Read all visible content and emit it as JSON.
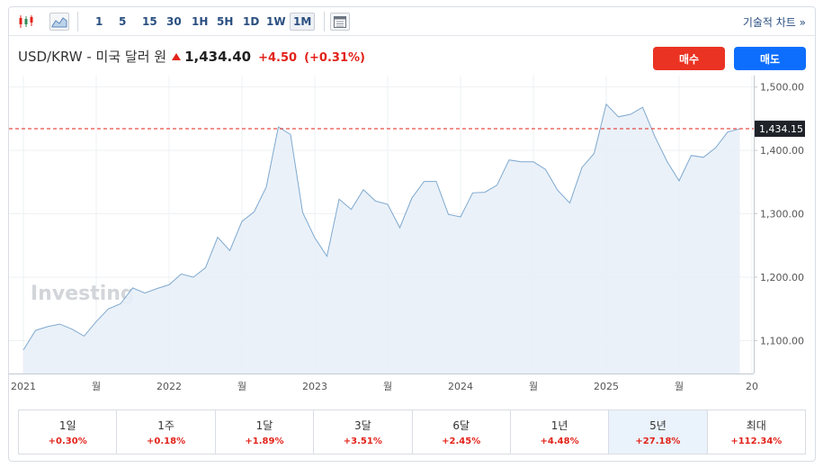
{
  "toolbar": {
    "timeframes": [
      {
        "label": "1",
        "active": false
      },
      {
        "label": "5",
        "active": false
      },
      {
        "label": "15",
        "active": false
      },
      {
        "label": "30",
        "active": false
      },
      {
        "label": "1H",
        "active": false
      },
      {
        "label": "5H",
        "active": false
      },
      {
        "label": "1D",
        "active": false
      },
      {
        "label": "1W",
        "active": false
      },
      {
        "label": "1M",
        "active": true
      }
    ],
    "technical_chart_link": "기술적 차트 »",
    "icons": [
      "candlestick-icon",
      "area-chart-icon",
      "calendar-icon"
    ]
  },
  "header": {
    "pair": "USD/KRW - 미국 달러 원",
    "price": "1,434.40",
    "change": "+4.50",
    "change_pct": "(+0.31%)",
    "direction": "up"
  },
  "buttons": {
    "buy": "매수",
    "sell": "매도"
  },
  "colors": {
    "up": "#e2231a",
    "buy": "#ea3323",
    "sell": "#0d6efd",
    "line": "#7fa9cf",
    "fill": "#e8f0f8"
  },
  "watermark": "Investing",
  "chart_data": {
    "type": "area",
    "frequency": "monthly",
    "start": "2021-01",
    "values": [
      1085,
      1116,
      1122,
      1126,
      1118,
      1107,
      1130,
      1150,
      1158,
      1183,
      1175,
      1182,
      1188,
      1205,
      1200,
      1215,
      1263,
      1242,
      1288,
      1303,
      1342,
      1437,
      1425,
      1302,
      1262,
      1233,
      1323,
      1307,
      1338,
      1320,
      1315,
      1278,
      1325,
      1351,
      1351,
      1299,
      1295,
      1333,
      1334,
      1345,
      1385,
      1382,
      1382,
      1370,
      1337,
      1317,
      1373,
      1395,
      1473,
      1453,
      1457,
      1468,
      1422,
      1383,
      1352,
      1392,
      1389,
      1404,
      1429,
      1434
    ],
    "last_price_label": "1,434.15",
    "last_price": 1434.15,
    "y_ticks": [
      "1,100.00",
      "1,200.00",
      "1,300.00",
      "1,400.00",
      "1,500.00"
    ],
    "y_tick_values": [
      1100,
      1200,
      1300,
      1400,
      1500
    ],
    "ylim": [
      1048,
      1518
    ],
    "x_ticks": [
      {
        "label": "2021",
        "index": 0
      },
      {
        "label": "월",
        "index": 6
      },
      {
        "label": "2022",
        "index": 12
      },
      {
        "label": "월",
        "index": 18
      },
      {
        "label": "2023",
        "index": 24
      },
      {
        "label": "월",
        "index": 30
      },
      {
        "label": "2024",
        "index": 36
      },
      {
        "label": "월",
        "index": 42
      },
      {
        "label": "2025",
        "index": 48
      },
      {
        "label": "월",
        "index": 54
      },
      {
        "label": "20",
        "index": 60
      }
    ],
    "grid": true
  },
  "periods": [
    {
      "label": "1일",
      "value": "+0.30%",
      "active": false
    },
    {
      "label": "1주",
      "value": "+0.18%",
      "active": false
    },
    {
      "label": "1달",
      "value": "+1.89%",
      "active": false
    },
    {
      "label": "3달",
      "value": "+3.51%",
      "active": false
    },
    {
      "label": "6달",
      "value": "+2.45%",
      "active": false
    },
    {
      "label": "1년",
      "value": "+4.48%",
      "active": false
    },
    {
      "label": "5년",
      "value": "+27.18%",
      "active": true
    },
    {
      "label": "최대",
      "value": "+112.34%",
      "active": false
    }
  ]
}
